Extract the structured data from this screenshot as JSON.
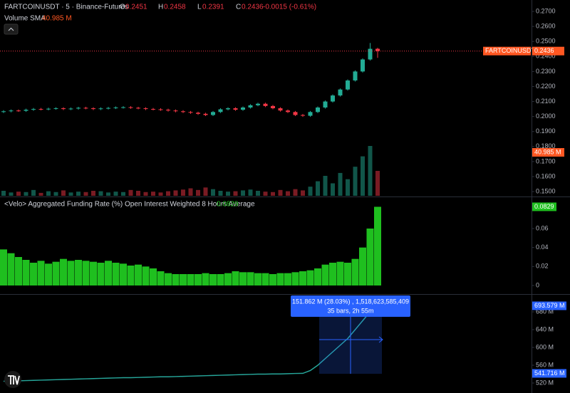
{
  "chart_data": [
    {
      "type": "candlestick",
      "title": "FARTCOINUSDT · 5 · Binance-Futures",
      "ohlc_labels": [
        "O",
        "H",
        "L",
        "C"
      ],
      "ohlc_values": [
        0.2451,
        0.2458,
        0.2391,
        0.2436
      ],
      "change": "-0.0015 (-0.61%)",
      "up_color": "#22ab94",
      "down_color": "#f23645",
      "series": [
        {
          "name": "FARTCOINUSDT",
          "open": [
            0.203,
            0.2035,
            0.204,
            0.2038,
            0.2045,
            0.205,
            0.2048,
            0.2052,
            0.2055,
            0.205,
            0.2053,
            0.2058,
            0.2055,
            0.205,
            0.2054,
            0.2057,
            0.206,
            0.2062,
            0.2058,
            0.2055,
            0.205,
            0.2048,
            0.2045,
            0.204,
            0.2035,
            0.203,
            0.2025,
            0.2018,
            0.201,
            0.203,
            0.2048,
            0.2055,
            0.2045,
            0.206,
            0.2075,
            0.2085,
            0.207,
            0.2055,
            0.204,
            0.203,
            0.201,
            0.2005,
            0.203,
            0.206,
            0.21,
            0.214,
            0.218,
            0.224,
            0.23,
            0.238,
            0.2451
          ],
          "high": [
            0.2042,
            0.2047,
            0.2047,
            0.2052,
            0.2057,
            0.2057,
            0.2059,
            0.2062,
            0.2062,
            0.206,
            0.2065,
            0.2065,
            0.2062,
            0.2061,
            0.2064,
            0.2067,
            0.2069,
            0.2069,
            0.2065,
            0.2062,
            0.2057,
            0.2055,
            0.2052,
            0.2047,
            0.2042,
            0.2037,
            0.2032,
            0.2025,
            0.2037,
            0.2055,
            0.2062,
            0.2062,
            0.2067,
            0.2082,
            0.2092,
            0.2092,
            0.2077,
            0.2062,
            0.2047,
            0.2037,
            0.2017,
            0.2037,
            0.2067,
            0.2107,
            0.2147,
            0.2187,
            0.2247,
            0.2307,
            0.2387,
            0.249,
            0.2458
          ],
          "low": [
            0.2023,
            0.2028,
            0.2031,
            0.2031,
            0.2038,
            0.2041,
            0.2041,
            0.2045,
            0.2043,
            0.2043,
            0.2046,
            0.2048,
            0.2043,
            0.2043,
            0.2047,
            0.205,
            0.2053,
            0.2051,
            0.2048,
            0.2043,
            0.2041,
            0.2038,
            0.2033,
            0.2028,
            0.2023,
            0.2018,
            0.2011,
            0.2003,
            0.2003,
            0.2023,
            0.2041,
            0.2038,
            0.2038,
            0.2053,
            0.2068,
            0.2063,
            0.2048,
            0.2033,
            0.2023,
            0.2003,
            0.1998,
            0.1998,
            0.2023,
            0.2053,
            0.2093,
            0.2133,
            0.2173,
            0.2233,
            0.2293,
            0.2373,
            0.2391
          ],
          "close": [
            0.2035,
            0.204,
            0.2038,
            0.2045,
            0.205,
            0.2048,
            0.2052,
            0.2055,
            0.205,
            0.2053,
            0.2058,
            0.2055,
            0.205,
            0.2054,
            0.2057,
            0.206,
            0.2062,
            0.2058,
            0.2055,
            0.205,
            0.2048,
            0.2045,
            0.204,
            0.2035,
            0.203,
            0.2025,
            0.2018,
            0.201,
            0.203,
            0.2048,
            0.2055,
            0.2045,
            0.206,
            0.2075,
            0.2085,
            0.207,
            0.2055,
            0.204,
            0.203,
            0.201,
            0.2005,
            0.203,
            0.206,
            0.21,
            0.214,
            0.218,
            0.224,
            0.23,
            0.238,
            0.2451,
            0.2436
          ]
        }
      ],
      "volume": {
        "name": "Volume SMA",
        "values": [
          12,
          8,
          10,
          9,
          14,
          7,
          11,
          9,
          13,
          8,
          10,
          9,
          12,
          11,
          8,
          10,
          9,
          14,
          12,
          9,
          10,
          8,
          11,
          13,
          15,
          18,
          14,
          20,
          16,
          12,
          10,
          11,
          13,
          15,
          12,
          10,
          9,
          14,
          11,
          16,
          13,
          22,
          35,
          48,
          30,
          55,
          40,
          70,
          95,
          120,
          60
        ],
        "sma_value": 40.985,
        "sma_value_label": "40.985 M"
      },
      "ylim": [
        0.1472,
        0.2776
      ],
      "yticks": [
        {
          "value": 0.15,
          "label": "0.1500"
        },
        {
          "value": 0.16,
          "label": "0.1600"
        },
        {
          "value": 0.17,
          "label": "0.1700"
        },
        {
          "value": 0.18,
          "label": "0.1800"
        },
        {
          "value": 0.19,
          "label": "0.1900"
        },
        {
          "value": 0.2,
          "label": "0.2000"
        },
        {
          "value": 0.21,
          "label": "0.2100"
        },
        {
          "value": 0.22,
          "label": "0.2200"
        },
        {
          "value": 0.23,
          "label": "0.2300"
        },
        {
          "value": 0.24,
          "label": "0.2400"
        },
        {
          "value": 0.25,
          "label": "0.2500"
        },
        {
          "value": 0.26,
          "label": "0.2600"
        },
        {
          "value": 0.27,
          "label": "0.2700"
        }
      ]
    },
    {
      "type": "bar",
      "title": "<Velo> Aggregated Funding Rate (%) Open Interest Weighted 8 Hours Average",
      "color": "#1fbf1f",
      "values": [
        0.038,
        0.034,
        0.03,
        0.027,
        0.024,
        0.026,
        0.023,
        0.025,
        0.028,
        0.026,
        0.027,
        0.026,
        0.025,
        0.024,
        0.026,
        0.024,
        0.023,
        0.021,
        0.022,
        0.02,
        0.018,
        0.015,
        0.013,
        0.012,
        0.012,
        0.012,
        0.012,
        0.013,
        0.012,
        0.012,
        0.013,
        0.015,
        0.014,
        0.014,
        0.013,
        0.013,
        0.012,
        0.013,
        0.013,
        0.014,
        0.015,
        0.016,
        0.018,
        0.022,
        0.024,
        0.025,
        0.024,
        0.028,
        0.04,
        0.06,
        0.0829
      ],
      "ylim": [
        -0.009,
        0.093
      ],
      "yticks": [
        0,
        0.02,
        0.04,
        0.06
      ]
    },
    {
      "type": "line",
      "color": "#26a69a",
      "values": [
        524,
        524.5,
        525,
        525.5,
        526,
        526.5,
        527,
        527.5,
        528,
        528.5,
        529,
        529.5,
        530,
        530.5,
        531,
        531.5,
        532,
        532,
        532.5,
        533,
        533.5,
        534,
        534,
        534.5,
        535,
        535.5,
        536,
        536.5,
        537,
        537.5,
        538,
        538.5,
        539,
        539.5,
        540,
        540,
        540.5,
        540.5,
        541,
        541.5,
        541.716,
        548,
        560,
        575,
        590,
        605,
        620,
        640,
        660,
        680,
        693.579
      ],
      "value_labels": [
        null,
        null,
        null,
        null,
        null,
        null,
        null,
        null,
        null,
        null,
        null,
        null,
        null,
        null,
        null,
        null,
        null,
        null,
        null,
        null,
        null,
        null,
        null,
        null,
        null,
        null,
        null,
        null,
        null,
        null,
        null,
        null,
        null,
        null,
        null,
        null,
        null,
        null,
        null,
        null,
        "541.716 M",
        null,
        null,
        null,
        null,
        null,
        null,
        null,
        null,
        null,
        "693.579 M"
      ],
      "ylim": [
        497.6,
        720
      ],
      "yticks": [
        {
          "value": 520,
          "label": "520 M"
        },
        {
          "value": 560,
          "label": "560 M"
        },
        {
          "value": 600,
          "label": "600 M"
        },
        {
          "value": 640,
          "label": "640 M"
        },
        {
          "value": 680,
          "label": "680 M"
        }
      ],
      "measurement": {
        "text": "151.862 M (28.03%) , 1,518,623,585,409",
        "bars": "35 bars, 2h 55m"
      }
    }
  ]
}
